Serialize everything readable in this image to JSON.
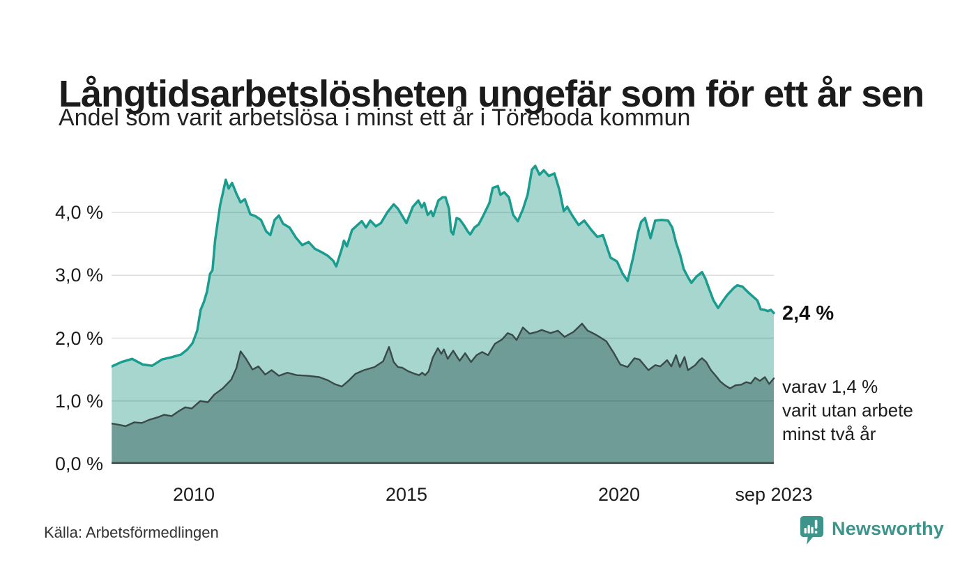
{
  "title": "Långtidsarbetslösheten ungefär som för ett år sen",
  "subtitle": "Andel som varit arbetslösa i minst ett år i Töreboda kommun",
  "source": "Källa: Arbetsförmedlingen",
  "branding": {
    "name": "Newsworthy",
    "color": "#3d948b"
  },
  "annotations": {
    "latest_total": "2,4 %",
    "sub_lines": [
      "varav 1,4 %",
      "varit utan arbete",
      "minst två år"
    ]
  },
  "colors": {
    "upper_line": "#1a9c8f",
    "upper_fill": "#a6d6ce",
    "lower_line": "#3a4a49",
    "lower_fill": "#6f9c97",
    "gridline": "rgba(0,0,0,0.13)",
    "baseline": "#3f4b49"
  },
  "chart_data": {
    "type": "area",
    "title": "Långtidsarbetslösheten ungefär som för ett år sen",
    "subtitle": "Andel som varit arbetslösa i minst ett år i Töreboda kommun",
    "grid": true,
    "legend": "none",
    "x_range": [
      2008.07,
      2023.64
    ],
    "y_range": [
      0,
      4.85
    ],
    "x_ticks": [
      {
        "year": 2010,
        "label": "2010"
      },
      {
        "year": 2015,
        "label": "2015"
      },
      {
        "year": 2020,
        "label": "2020"
      },
      {
        "year": 2023.64,
        "label": "sep 2023"
      }
    ],
    "y_ticks": [
      {
        "value": 0,
        "label": "0,0 %"
      },
      {
        "value": 1,
        "label": "1,0 %"
      },
      {
        "value": 2,
        "label": "2,0 %"
      },
      {
        "value": 3,
        "label": "3,0 %"
      },
      {
        "value": 4,
        "label": "4,0 %"
      }
    ],
    "series": [
      {
        "name": "Arbetslösa minst ett år",
        "unit": "%",
        "latest_label": "2,4 %",
        "points": [
          [
            2008.07,
            1.55
          ],
          [
            2008.3,
            1.62
          ],
          [
            2008.55,
            1.67
          ],
          [
            2008.8,
            1.58
          ],
          [
            2009.02,
            1.56
          ],
          [
            2009.25,
            1.66
          ],
          [
            2009.5,
            1.7
          ],
          [
            2009.7,
            1.74
          ],
          [
            2009.85,
            1.82
          ],
          [
            2009.97,
            1.92
          ],
          [
            2010.08,
            2.12
          ],
          [
            2010.16,
            2.45
          ],
          [
            2010.24,
            2.58
          ],
          [
            2010.31,
            2.74
          ],
          [
            2010.38,
            3.02
          ],
          [
            2010.44,
            3.08
          ],
          [
            2010.5,
            3.55
          ],
          [
            2010.56,
            3.84
          ],
          [
            2010.62,
            4.12
          ],
          [
            2010.68,
            4.3
          ],
          [
            2010.75,
            4.52
          ],
          [
            2010.82,
            4.38
          ],
          [
            2010.9,
            4.47
          ],
          [
            2011.0,
            4.3
          ],
          [
            2011.1,
            4.16
          ],
          [
            2011.2,
            4.21
          ],
          [
            2011.33,
            3.97
          ],
          [
            2011.45,
            3.94
          ],
          [
            2011.58,
            3.88
          ],
          [
            2011.7,
            3.7
          ],
          [
            2011.8,
            3.64
          ],
          [
            2011.9,
            3.88
          ],
          [
            2012.0,
            3.95
          ],
          [
            2012.1,
            3.82
          ],
          [
            2012.25,
            3.76
          ],
          [
            2012.4,
            3.6
          ],
          [
            2012.55,
            3.48
          ],
          [
            2012.7,
            3.53
          ],
          [
            2012.85,
            3.42
          ],
          [
            2013.0,
            3.37
          ],
          [
            2013.15,
            3.31
          ],
          [
            2013.28,
            3.23
          ],
          [
            2013.35,
            3.14
          ],
          [
            2013.48,
            3.42
          ],
          [
            2013.53,
            3.55
          ],
          [
            2013.6,
            3.46
          ],
          [
            2013.72,
            3.72
          ],
          [
            2013.85,
            3.8
          ],
          [
            2013.95,
            3.86
          ],
          [
            2014.05,
            3.76
          ],
          [
            2014.15,
            3.87
          ],
          [
            2014.28,
            3.78
          ],
          [
            2014.4,
            3.83
          ],
          [
            2014.55,
            4.0
          ],
          [
            2014.7,
            4.13
          ],
          [
            2014.8,
            4.06
          ],
          [
            2015.0,
            3.83
          ],
          [
            2015.15,
            4.09
          ],
          [
            2015.28,
            4.19
          ],
          [
            2015.36,
            4.08
          ],
          [
            2015.42,
            4.15
          ],
          [
            2015.5,
            3.96
          ],
          [
            2015.58,
            4.02
          ],
          [
            2015.63,
            3.94
          ],
          [
            2015.75,
            4.19
          ],
          [
            2015.85,
            4.24
          ],
          [
            2015.92,
            4.24
          ],
          [
            2016.0,
            4.06
          ],
          [
            2016.05,
            3.7
          ],
          [
            2016.1,
            3.65
          ],
          [
            2016.18,
            3.91
          ],
          [
            2016.25,
            3.89
          ],
          [
            2016.35,
            3.8
          ],
          [
            2016.44,
            3.7
          ],
          [
            2016.5,
            3.65
          ],
          [
            2016.6,
            3.76
          ],
          [
            2016.7,
            3.81
          ],
          [
            2016.8,
            3.94
          ],
          [
            2016.95,
            4.15
          ],
          [
            2017.03,
            4.39
          ],
          [
            2017.15,
            4.42
          ],
          [
            2017.21,
            4.28
          ],
          [
            2017.3,
            4.32
          ],
          [
            2017.41,
            4.24
          ],
          [
            2017.51,
            3.96
          ],
          [
            2017.62,
            3.86
          ],
          [
            2017.74,
            4.05
          ],
          [
            2017.85,
            4.28
          ],
          [
            2017.95,
            4.68
          ],
          [
            2018.03,
            4.74
          ],
          [
            2018.13,
            4.6
          ],
          [
            2018.23,
            4.67
          ],
          [
            2018.35,
            4.58
          ],
          [
            2018.48,
            4.62
          ],
          [
            2018.6,
            4.35
          ],
          [
            2018.7,
            4.02
          ],
          [
            2018.78,
            4.09
          ],
          [
            2018.9,
            3.95
          ],
          [
            2019.05,
            3.8
          ],
          [
            2019.18,
            3.87
          ],
          [
            2019.35,
            3.72
          ],
          [
            2019.49,
            3.61
          ],
          [
            2019.62,
            3.64
          ],
          [
            2019.8,
            3.28
          ],
          [
            2019.95,
            3.22
          ],
          [
            2020.08,
            3.03
          ],
          [
            2020.2,
            2.91
          ],
          [
            2020.33,
            3.28
          ],
          [
            2020.45,
            3.69
          ],
          [
            2020.52,
            3.85
          ],
          [
            2020.61,
            3.91
          ],
          [
            2020.74,
            3.59
          ],
          [
            2020.85,
            3.87
          ],
          [
            2021.0,
            3.88
          ],
          [
            2021.15,
            3.87
          ],
          [
            2021.25,
            3.76
          ],
          [
            2021.34,
            3.52
          ],
          [
            2021.44,
            3.32
          ],
          [
            2021.52,
            3.1
          ],
          [
            2021.62,
            2.97
          ],
          [
            2021.7,
            2.88
          ],
          [
            2021.82,
            2.98
          ],
          [
            2021.95,
            3.05
          ],
          [
            2022.03,
            2.95
          ],
          [
            2022.12,
            2.78
          ],
          [
            2022.22,
            2.6
          ],
          [
            2022.33,
            2.48
          ],
          [
            2022.45,
            2.6
          ],
          [
            2022.55,
            2.69
          ],
          [
            2022.7,
            2.8
          ],
          [
            2022.78,
            2.84
          ],
          [
            2022.9,
            2.82
          ],
          [
            2023.05,
            2.72
          ],
          [
            2023.15,
            2.66
          ],
          [
            2023.25,
            2.6
          ],
          [
            2023.33,
            2.46
          ],
          [
            2023.42,
            2.45
          ],
          [
            2023.5,
            2.43
          ],
          [
            2023.57,
            2.45
          ],
          [
            2023.64,
            2.4
          ]
        ]
      },
      {
        "name": "Arbetslösa minst två år",
        "unit": "%",
        "latest_label": "1,4 %",
        "points": [
          [
            2008.07,
            0.64
          ],
          [
            2008.25,
            0.62
          ],
          [
            2008.4,
            0.6
          ],
          [
            2008.6,
            0.66
          ],
          [
            2008.78,
            0.65
          ],
          [
            2008.95,
            0.7
          ],
          [
            2009.15,
            0.74
          ],
          [
            2009.3,
            0.78
          ],
          [
            2009.48,
            0.76
          ],
          [
            2009.65,
            0.84
          ],
          [
            2009.8,
            0.9
          ],
          [
            2009.95,
            0.88
          ],
          [
            2010.15,
            1.0
          ],
          [
            2010.33,
            0.98
          ],
          [
            2010.48,
            1.1
          ],
          [
            2010.68,
            1.2
          ],
          [
            2010.88,
            1.34
          ],
          [
            2011.0,
            1.52
          ],
          [
            2011.1,
            1.79
          ],
          [
            2011.22,
            1.68
          ],
          [
            2011.38,
            1.5
          ],
          [
            2011.52,
            1.55
          ],
          [
            2011.68,
            1.42
          ],
          [
            2011.83,
            1.49
          ],
          [
            2012.0,
            1.4
          ],
          [
            2012.2,
            1.45
          ],
          [
            2012.42,
            1.41
          ],
          [
            2012.68,
            1.4
          ],
          [
            2012.95,
            1.38
          ],
          [
            2013.15,
            1.33
          ],
          [
            2013.31,
            1.27
          ],
          [
            2013.48,
            1.23
          ],
          [
            2013.65,
            1.33
          ],
          [
            2013.8,
            1.43
          ],
          [
            2014.0,
            1.49
          ],
          [
            2014.25,
            1.54
          ],
          [
            2014.45,
            1.63
          ],
          [
            2014.59,
            1.86
          ],
          [
            2014.7,
            1.62
          ],
          [
            2014.8,
            1.54
          ],
          [
            2014.9,
            1.53
          ],
          [
            2015.05,
            1.47
          ],
          [
            2015.2,
            1.43
          ],
          [
            2015.3,
            1.41
          ],
          [
            2015.37,
            1.45
          ],
          [
            2015.44,
            1.41
          ],
          [
            2015.52,
            1.47
          ],
          [
            2015.62,
            1.69
          ],
          [
            2015.74,
            1.84
          ],
          [
            2015.82,
            1.75
          ],
          [
            2015.88,
            1.82
          ],
          [
            2015.97,
            1.67
          ],
          [
            2016.1,
            1.8
          ],
          [
            2016.25,
            1.64
          ],
          [
            2016.38,
            1.76
          ],
          [
            2016.52,
            1.62
          ],
          [
            2016.65,
            1.73
          ],
          [
            2016.78,
            1.78
          ],
          [
            2016.92,
            1.73
          ],
          [
            2017.08,
            1.91
          ],
          [
            2017.25,
            1.98
          ],
          [
            2017.38,
            2.08
          ],
          [
            2017.49,
            2.05
          ],
          [
            2017.59,
            1.97
          ],
          [
            2017.74,
            2.17
          ],
          [
            2017.9,
            2.07
          ],
          [
            2018.07,
            2.1
          ],
          [
            2018.18,
            2.13
          ],
          [
            2018.39,
            2.08
          ],
          [
            2018.56,
            2.12
          ],
          [
            2018.72,
            2.02
          ],
          [
            2018.93,
            2.1
          ],
          [
            2019.13,
            2.23
          ],
          [
            2019.26,
            2.12
          ],
          [
            2019.41,
            2.07
          ],
          [
            2019.54,
            2.02
          ],
          [
            2019.7,
            1.95
          ],
          [
            2019.87,
            1.77
          ],
          [
            2020.03,
            1.58
          ],
          [
            2020.2,
            1.54
          ],
          [
            2020.36,
            1.68
          ],
          [
            2020.48,
            1.66
          ],
          [
            2020.69,
            1.49
          ],
          [
            2020.85,
            1.57
          ],
          [
            2020.97,
            1.55
          ],
          [
            2021.13,
            1.65
          ],
          [
            2021.23,
            1.55
          ],
          [
            2021.34,
            1.73
          ],
          [
            2021.43,
            1.54
          ],
          [
            2021.54,
            1.7
          ],
          [
            2021.62,
            1.49
          ],
          [
            2021.79,
            1.57
          ],
          [
            2021.89,
            1.65
          ],
          [
            2021.95,
            1.68
          ],
          [
            2022.05,
            1.62
          ],
          [
            2022.16,
            1.49
          ],
          [
            2022.3,
            1.38
          ],
          [
            2022.38,
            1.31
          ],
          [
            2022.49,
            1.25
          ],
          [
            2022.61,
            1.2
          ],
          [
            2022.74,
            1.25
          ],
          [
            2022.87,
            1.26
          ],
          [
            2022.99,
            1.3
          ],
          [
            2023.1,
            1.28
          ],
          [
            2023.2,
            1.37
          ],
          [
            2023.31,
            1.32
          ],
          [
            2023.43,
            1.38
          ],
          [
            2023.53,
            1.27
          ],
          [
            2023.64,
            1.36
          ]
        ]
      }
    ]
  }
}
